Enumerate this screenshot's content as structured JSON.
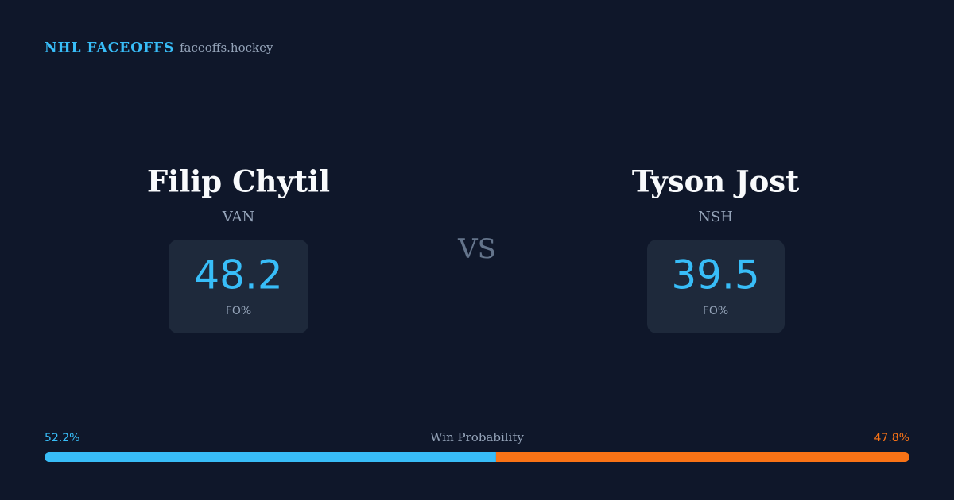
{
  "header": {
    "title": "NHL FACEOFFS",
    "site": "faceoffs.hockey"
  },
  "players": [
    {
      "name": "Filip Chytil",
      "team": "VAN",
      "fo_pct": 48.2,
      "fo_label": "FO%"
    },
    {
      "name": "Tyson Jost",
      "team": "NSH",
      "fo_pct": 39.5,
      "fo_label": "FO%"
    }
  ],
  "vs": "VS",
  "win_probability": {
    "label": "Win Probability",
    "home": {
      "value": 52.2,
      "label": "52.2%",
      "color": "#38bdf8"
    },
    "away": {
      "value": 47.8,
      "label": "47.8%",
      "color": "#f97316"
    }
  }
}
